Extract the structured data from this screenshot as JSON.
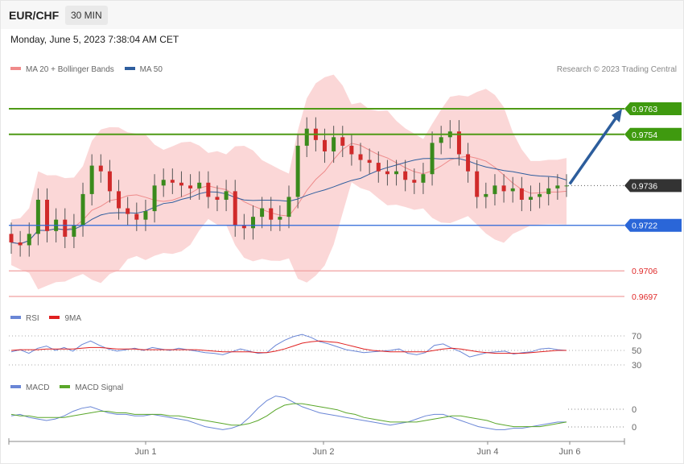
{
  "header": {
    "pair": "EUR/CHF",
    "timeframe": "30 MIN",
    "datetime": "Monday, June 5, 2023 7:38:04 AM CET"
  },
  "legends": {
    "main": [
      {
        "label": "MA 20 + Bollinger Bands",
        "color": "#f08a8a"
      },
      {
        "label": "MA 50",
        "color": "#2f5e9e"
      }
    ],
    "rsi": [
      {
        "label": "RSI",
        "color": "#6a86d6"
      },
      {
        "label": "9MA",
        "color": "#e02020"
      }
    ],
    "macd": [
      {
        "label": "MACD",
        "color": "#6a86d6"
      },
      {
        "label": "MACD Signal",
        "color": "#5aa72a"
      }
    ]
  },
  "credit": "Research © 2023 Trading Central",
  "colors": {
    "resistance": "#4f9a16",
    "support": "#2a66d8",
    "target_low": "#f0a0a0",
    "bull": "#3a8a1c",
    "bear": "#d02a2a",
    "band": "#f9c9c9",
    "arrow": "#2c5d9c"
  },
  "chart_data": [
    {
      "type": "candlestick",
      "title": "",
      "x_ticks": [
        "Jun 1",
        "Jun 2",
        "Jun 4",
        "Jun 6"
      ],
      "ylim": [
        0.9693,
        0.9776
      ],
      "close_approx": [
        0.9716,
        0.9715,
        0.9719,
        0.9731,
        0.972,
        0.9724,
        0.9718,
        0.9722,
        0.9733,
        0.9743,
        0.9741,
        0.9734,
        0.9728,
        0.9726,
        0.9724,
        0.9727,
        0.9736,
        0.9738,
        0.9737,
        0.9736,
        0.9735,
        0.9737,
        0.9732,
        0.9731,
        0.9734,
        0.9722,
        0.9721,
        0.9725,
        0.9728,
        0.9724,
        0.9725,
        0.9732,
        0.975,
        0.9756,
        0.9752,
        0.9748,
        0.9753,
        0.975,
        0.9747,
        0.9745,
        0.9744,
        0.9741,
        0.974,
        0.9741,
        0.9738,
        0.9737,
        0.974,
        0.9751,
        0.9753,
        0.9755,
        0.9747,
        0.9741,
        0.9732,
        0.9733,
        0.9736,
        0.9734,
        0.9735,
        0.9731,
        0.9732,
        0.9733,
        0.9735,
        0.9736,
        0.9736
      ],
      "levels": [
        {
          "value": "0.9763",
          "kind": "resistance"
        },
        {
          "value": "0.9754",
          "kind": "resistance"
        },
        {
          "value": "0.9736",
          "kind": "current"
        },
        {
          "value": "0.9722",
          "kind": "support"
        },
        {
          "value": "0.9706",
          "kind": "target"
        },
        {
          "value": "0.9697",
          "kind": "target"
        }
      ],
      "forecast": {
        "from": 0.9736,
        "to": 0.9763,
        "direction": "up"
      }
    },
    {
      "type": "line",
      "name": "RSI",
      "y_ticks": [
        "70",
        "50",
        "30"
      ],
      "ylim": [
        25,
        75
      ],
      "series": [
        {
          "name": "RSI",
          "values": [
            48,
            51,
            46,
            53,
            56,
            50,
            54,
            49,
            58,
            63,
            57,
            52,
            49,
            51,
            53,
            50,
            54,
            52,
            50,
            53,
            51,
            49,
            47,
            46,
            44,
            48,
            52,
            49,
            46,
            47,
            57,
            64,
            69,
            72,
            68,
            62,
            59,
            55,
            51,
            49,
            47,
            48,
            49,
            50,
            52,
            46,
            44,
            47,
            57,
            59,
            53,
            48,
            41,
            44,
            47,
            48,
            49,
            45,
            47,
            48,
            52,
            53,
            51,
            50
          ]
        },
        {
          "name": "9MA",
          "values": [
            50,
            51,
            51,
            51,
            52,
            52,
            52,
            52,
            53,
            54,
            54,
            53,
            52,
            52,
            52,
            51,
            51,
            51,
            51,
            51,
            51,
            51,
            50,
            49,
            48,
            48,
            48,
            48,
            47,
            47,
            49,
            52,
            56,
            60,
            62,
            63,
            62,
            61,
            58,
            55,
            52,
            50,
            49,
            48,
            48,
            48,
            48,
            48,
            50,
            52,
            53,
            52,
            50,
            48,
            47,
            46,
            46,
            46,
            46,
            47,
            48,
            49,
            50,
            50
          ]
        }
      ]
    },
    {
      "type": "line",
      "name": "MACD",
      "y_ticks": [
        "0",
        "0"
      ],
      "series": [
        {
          "name": "MACD",
          "values": [
            3,
            4,
            2,
            1,
            0,
            1,
            3,
            6,
            8,
            9,
            7,
            5,
            4,
            4,
            3,
            3,
            4,
            3,
            2,
            1,
            0,
            -2,
            -4,
            -5,
            -6,
            -5,
            -3,
            2,
            8,
            13,
            16,
            15,
            12,
            9,
            7,
            5,
            4,
            3,
            2,
            1,
            0,
            -1,
            -2,
            -3,
            -2,
            -1,
            1,
            3,
            4,
            4,
            2,
            0,
            -2,
            -4,
            -5,
            -6,
            -6,
            -5,
            -5,
            -4,
            -3,
            -2,
            -1,
            -1
          ]
        },
        {
          "name": "MACD Signal",
          "values": [
            4,
            3,
            3,
            2,
            2,
            2,
            2,
            3,
            4,
            5,
            6,
            6,
            5,
            5,
            4,
            4,
            4,
            4,
            3,
            3,
            2,
            1,
            0,
            -1,
            -2,
            -3,
            -3,
            -2,
            0,
            3,
            7,
            10,
            11,
            11,
            10,
            9,
            8,
            7,
            5,
            4,
            2,
            1,
            0,
            -1,
            -1,
            -1,
            -1,
            0,
            1,
            2,
            3,
            3,
            2,
            1,
            0,
            -2,
            -3,
            -4,
            -4,
            -4,
            -4,
            -3,
            -2,
            -1
          ]
        }
      ]
    }
  ]
}
